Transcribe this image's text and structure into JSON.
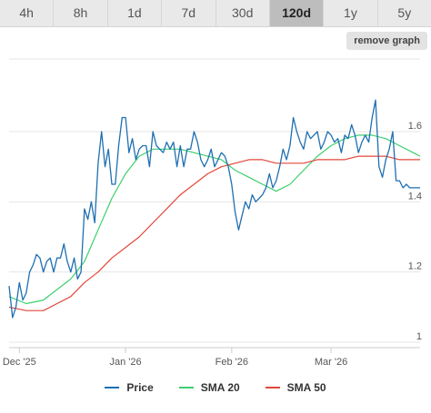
{
  "tabs": [
    {
      "label": "4h",
      "active": false
    },
    {
      "label": "8h",
      "active": false
    },
    {
      "label": "1d",
      "active": false
    },
    {
      "label": "7d",
      "active": false
    },
    {
      "label": "30d",
      "active": false
    },
    {
      "label": "120d",
      "active": true
    },
    {
      "label": "1y",
      "active": false
    },
    {
      "label": "5y",
      "active": false
    }
  ],
  "remove_graph_label": "remove graph",
  "colors": {
    "price": "#1f6fb2",
    "sma20": "#3ccf6e",
    "sma50": "#e2473b",
    "grid": "#e6e6e6"
  },
  "chart_data": {
    "type": "line",
    "x_ticks": [
      {
        "label": "Dec '25",
        "x": 3
      },
      {
        "label": "Jan '26",
        "x": 34
      },
      {
        "label": "Feb '26",
        "x": 65
      },
      {
        "label": "Mar '26",
        "x": 94
      }
    ],
    "y_ticks": [
      1,
      1.2,
      1.4,
      1.6
    ],
    "ylim": [
      1,
      1.65
    ],
    "xlim": [
      0,
      120
    ],
    "grid": true,
    "legend_position": "bottom",
    "series": [
      {
        "name": "Price",
        "color_key": "price",
        "points": [
          [
            0,
            1.16
          ],
          [
            1,
            1.07
          ],
          [
            2,
            1.1
          ],
          [
            3,
            1.17
          ],
          [
            4,
            1.12
          ],
          [
            5,
            1.14
          ],
          [
            6,
            1.2
          ],
          [
            7,
            1.22
          ],
          [
            8,
            1.25
          ],
          [
            9,
            1.24
          ],
          [
            10,
            1.2
          ],
          [
            11,
            1.23
          ],
          [
            12,
            1.24
          ],
          [
            13,
            1.2
          ],
          [
            14,
            1.24
          ],
          [
            15,
            1.24
          ],
          [
            16,
            1.28
          ],
          [
            17,
            1.23
          ],
          [
            18,
            1.2
          ],
          [
            19,
            1.24
          ],
          [
            20,
            1.18
          ],
          [
            21,
            1.2
          ],
          [
            22,
            1.38
          ],
          [
            23,
            1.35
          ],
          [
            24,
            1.4
          ],
          [
            25,
            1.34
          ],
          [
            26,
            1.51
          ],
          [
            27,
            1.6
          ],
          [
            28,
            1.5
          ],
          [
            29,
            1.55
          ],
          [
            30,
            1.45
          ],
          [
            31,
            1.45
          ],
          [
            32,
            1.56
          ],
          [
            33,
            1.64
          ],
          [
            34,
            1.64
          ],
          [
            35,
            1.54
          ],
          [
            36,
            1.58
          ],
          [
            37,
            1.52
          ],
          [
            38,
            1.55
          ],
          [
            39,
            1.56
          ],
          [
            40,
            1.56
          ],
          [
            41,
            1.5
          ],
          [
            42,
            1.6
          ],
          [
            43,
            1.56
          ],
          [
            44,
            1.55
          ],
          [
            45,
            1.54
          ],
          [
            46,
            1.57
          ],
          [
            47,
            1.55
          ],
          [
            48,
            1.57
          ],
          [
            49,
            1.5
          ],
          [
            50,
            1.56
          ],
          [
            51,
            1.5
          ],
          [
            52,
            1.55
          ],
          [
            53,
            1.55
          ],
          [
            54,
            1.6
          ],
          [
            55,
            1.57
          ],
          [
            56,
            1.52
          ],
          [
            57,
            1.5
          ],
          [
            58,
            1.52
          ],
          [
            59,
            1.55
          ],
          [
            60,
            1.5
          ],
          [
            61,
            1.52
          ],
          [
            62,
            1.54
          ],
          [
            63,
            1.53
          ],
          [
            64,
            1.5
          ],
          [
            65,
            1.45
          ],
          [
            66,
            1.37
          ],
          [
            67,
            1.32
          ],
          [
            68,
            1.36
          ],
          [
            69,
            1.4
          ],
          [
            70,
            1.38
          ],
          [
            71,
            1.42
          ],
          [
            72,
            1.4
          ],
          [
            73,
            1.41
          ],
          [
            74,
            1.42
          ],
          [
            75,
            1.44
          ],
          [
            76,
            1.48
          ],
          [
            77,
            1.44
          ],
          [
            78,
            1.46
          ],
          [
            79,
            1.5
          ],
          [
            80,
            1.55
          ],
          [
            81,
            1.52
          ],
          [
            82,
            1.56
          ],
          [
            83,
            1.64
          ],
          [
            84,
            1.6
          ],
          [
            85,
            1.57
          ],
          [
            86,
            1.55
          ],
          [
            87,
            1.6
          ],
          [
            88,
            1.58
          ],
          [
            89,
            1.59
          ],
          [
            90,
            1.6
          ],
          [
            91,
            1.55
          ],
          [
            92,
            1.57
          ],
          [
            93,
            1.6
          ],
          [
            94,
            1.59
          ],
          [
            95,
            1.57
          ],
          [
            96,
            1.58
          ],
          [
            97,
            1.54
          ],
          [
            98,
            1.59
          ],
          [
            99,
            1.58
          ],
          [
            100,
            1.62
          ],
          [
            101,
            1.59
          ],
          [
            102,
            1.54
          ],
          [
            103,
            1.57
          ],
          [
            104,
            1.59
          ],
          [
            105,
            1.57
          ],
          [
            106,
            1.64
          ],
          [
            107,
            1.69
          ],
          [
            108,
            1.5
          ],
          [
            109,
            1.47
          ],
          [
            110,
            1.52
          ],
          [
            111,
            1.55
          ],
          [
            112,
            1.6
          ],
          [
            113,
            1.46
          ],
          [
            114,
            1.46
          ],
          [
            115,
            1.44
          ],
          [
            116,
            1.45
          ],
          [
            117,
            1.44
          ],
          [
            118,
            1.44
          ],
          [
            119,
            1.44
          ],
          [
            120,
            1.44
          ]
        ]
      },
      {
        "name": "SMA 20",
        "color_key": "sma20",
        "points": [
          [
            0,
            1.13
          ],
          [
            5,
            1.11
          ],
          [
            10,
            1.12
          ],
          [
            14,
            1.15
          ],
          [
            18,
            1.18
          ],
          [
            22,
            1.23
          ],
          [
            26,
            1.32
          ],
          [
            30,
            1.41
          ],
          [
            34,
            1.48
          ],
          [
            38,
            1.53
          ],
          [
            42,
            1.55
          ],
          [
            46,
            1.55
          ],
          [
            50,
            1.55
          ],
          [
            54,
            1.54
          ],
          [
            58,
            1.53
          ],
          [
            62,
            1.52
          ],
          [
            66,
            1.49
          ],
          [
            70,
            1.47
          ],
          [
            74,
            1.45
          ],
          [
            78,
            1.43
          ],
          [
            82,
            1.45
          ],
          [
            86,
            1.49
          ],
          [
            90,
            1.53
          ],
          [
            94,
            1.56
          ],
          [
            98,
            1.58
          ],
          [
            102,
            1.59
          ],
          [
            106,
            1.59
          ],
          [
            110,
            1.58
          ],
          [
            114,
            1.56
          ],
          [
            118,
            1.54
          ],
          [
            120,
            1.53
          ]
        ]
      },
      {
        "name": "SMA 50",
        "color_key": "sma50",
        "points": [
          [
            0,
            1.1
          ],
          [
            5,
            1.09
          ],
          [
            10,
            1.09
          ],
          [
            14,
            1.11
          ],
          [
            18,
            1.13
          ],
          [
            22,
            1.17
          ],
          [
            26,
            1.2
          ],
          [
            30,
            1.24
          ],
          [
            34,
            1.27
          ],
          [
            38,
            1.3
          ],
          [
            42,
            1.34
          ],
          [
            46,
            1.38
          ],
          [
            50,
            1.42
          ],
          [
            54,
            1.45
          ],
          [
            58,
            1.48
          ],
          [
            62,
            1.5
          ],
          [
            66,
            1.51
          ],
          [
            70,
            1.52
          ],
          [
            74,
            1.52
          ],
          [
            78,
            1.51
          ],
          [
            82,
            1.51
          ],
          [
            86,
            1.51
          ],
          [
            90,
            1.52
          ],
          [
            94,
            1.52
          ],
          [
            98,
            1.52
          ],
          [
            102,
            1.53
          ],
          [
            106,
            1.53
          ],
          [
            110,
            1.53
          ],
          [
            114,
            1.52
          ],
          [
            118,
            1.52
          ],
          [
            120,
            1.52
          ]
        ]
      }
    ]
  }
}
